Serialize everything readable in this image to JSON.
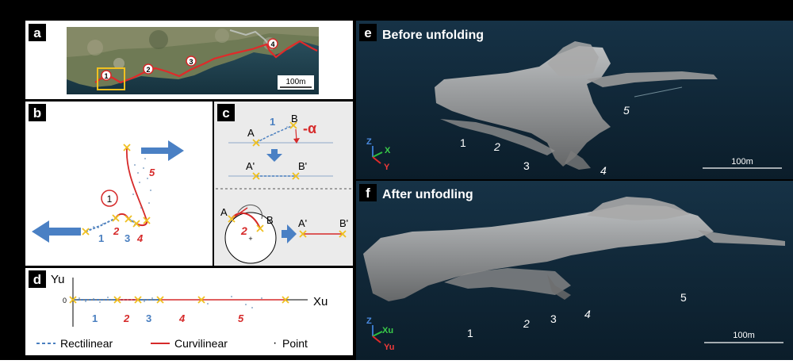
{
  "panels": {
    "a": {
      "letter": "a",
      "sites": [
        "1",
        "2",
        "3",
        "4"
      ],
      "scale": "100m"
    },
    "b": {
      "letter": "b",
      "circled": "1",
      "segments": [
        "1",
        "2",
        "3",
        "4",
        "5"
      ]
    },
    "c": {
      "letter": "c",
      "top": {
        "A": "A",
        "B": "B",
        "seg": "1",
        "alpha": "-α",
        "A2": "A'",
        "B2": "B'"
      },
      "bottom": {
        "A": "A",
        "B": "B",
        "seg": "2",
        "A2": "A'",
        "B2": "B'"
      }
    },
    "d": {
      "letter": "d",
      "yaxis": "Yu",
      "xaxis": "Xu",
      "zero": "0",
      "segments": [
        "1",
        "2",
        "3",
        "4",
        "5"
      ],
      "legend": {
        "rect": "Rectilinear",
        "curv": "Curvilinear",
        "dot": "·",
        "point": "Point"
      }
    },
    "e": {
      "letter": "e",
      "title": "Before unfolding",
      "axes": {
        "z": "Z",
        "x": "X",
        "y": "Y"
      },
      "segments": [
        "1",
        "2",
        "3",
        "4",
        "5"
      ],
      "scale": "100m"
    },
    "f": {
      "letter": "f",
      "title": "After unfodling",
      "axes": {
        "z": "Z",
        "x": "Xu",
        "y": "Yu"
      },
      "segments": [
        "1",
        "2",
        "3",
        "4",
        "5"
      ],
      "scale": "100m"
    }
  },
  "colors": {
    "rect": "#4a7fc0",
    "curv": "#d62a2a",
    "cross": "#f0c020",
    "arrow": "#4a80c4",
    "night": "#0e2433"
  }
}
